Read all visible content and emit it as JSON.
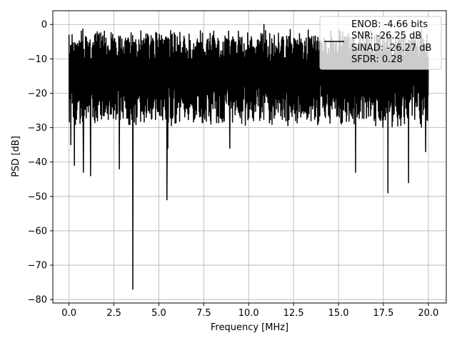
{
  "chart_data": {
    "type": "line",
    "title": "",
    "xlabel": "Frequency [MHz]",
    "ylabel": "PSD [dB]",
    "xlim": [
      -0.9,
      21.0
    ],
    "ylim": [
      -81,
      4
    ],
    "x_ticks": [
      0.0,
      2.5,
      5.0,
      7.5,
      10.0,
      12.5,
      15.0,
      17.5,
      20.0
    ],
    "x_tick_labels": [
      "0.0",
      "2.5",
      "5.0",
      "7.5",
      "10.0",
      "12.5",
      "15.0",
      "17.5",
      "20.0"
    ],
    "y_ticks": [
      0,
      -10,
      -20,
      -30,
      -40,
      -50,
      -60,
      -70,
      -80
    ],
    "y_tick_labels": [
      "0",
      "−10",
      "−20",
      "−30",
      "−40",
      "−50",
      "−60",
      "−70",
      "−80"
    ],
    "grid": true,
    "legend_placement": "top-right",
    "line_color": "#000000",
    "series": [
      {
        "x_range": [
          0.0,
          20.0
        ],
        "band_upper_approx": [
          -4,
          -1
        ],
        "band_lower_approx": [
          -20,
          -17
        ],
        "notable_points": [
          {
            "x": 0.0,
            "y": -3
          },
          {
            "x": 0.1,
            "y": -35
          },
          {
            "x": 0.3,
            "y": -41
          },
          {
            "x": 0.8,
            "y": -43
          },
          {
            "x": 1.2,
            "y": -44
          },
          {
            "x": 2.8,
            "y": -42
          },
          {
            "x": 3.55,
            "y": -77
          },
          {
            "x": 5.45,
            "y": -51
          },
          {
            "x": 5.5,
            "y": -36
          },
          {
            "x": 8.95,
            "y": -36
          },
          {
            "x": 10.85,
            "y": 0
          },
          {
            "x": 15.95,
            "y": -43
          },
          {
            "x": 17.75,
            "y": -49
          },
          {
            "x": 18.9,
            "y": -46
          },
          {
            "x": 19.85,
            "y": -37
          }
        ]
      }
    ],
    "legend": {
      "lines": [
        "ENOB: -4.66 bits",
        "SNR: -26.25 dB",
        "SINAD: -26.27 dB",
        "SFDR: 0.28"
      ]
    }
  }
}
